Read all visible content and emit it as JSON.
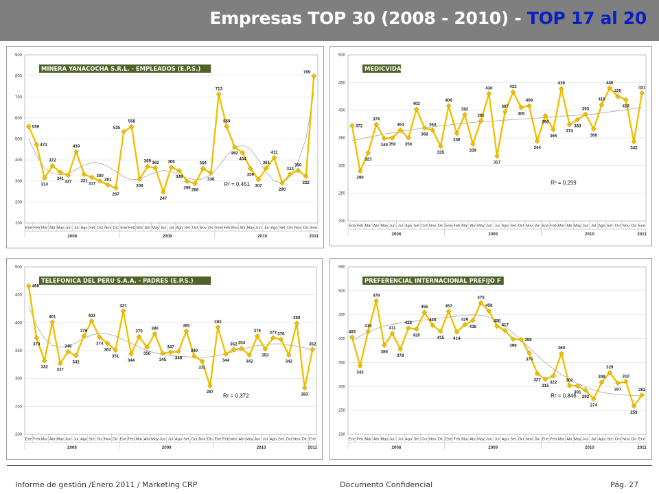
{
  "header": {
    "title_main": "Empresas TOP 30 (2008 - 2010) - ",
    "title_highlight": "TOP 17 al 20"
  },
  "footer": {
    "left": "Informe de gestión /Enero 2011 / Marketing CRP",
    "center": "Documento Confidencial",
    "right": "Pág. 27"
  },
  "colors": {
    "header_bg": "#7f7f7f",
    "title_highlight": "#0a1fc0",
    "series": "#f0c000",
    "label_bg": "#4f6228"
  },
  "months": [
    "Ene",
    "Feb",
    "Mar",
    "Abr",
    "May",
    "Jun",
    "Jul",
    "Ago",
    "Set",
    "Oct",
    "Nov",
    "Dic",
    "Ene",
    "Feb",
    "Mar",
    "Abr",
    "May",
    "Jun",
    "Jul",
    "Ago",
    "Set",
    "Oct",
    "Nov",
    "Dic",
    "Ene",
    "Feb",
    "Mar",
    "Abr",
    "May",
    "Jun",
    "Jul",
    "Ago",
    "Set",
    "Oct",
    "Nov",
    "Dic",
    "Ene"
  ],
  "years": [
    "2008",
    "2009",
    "2010",
    "2011"
  ],
  "chart_data": [
    {
      "type": "line",
      "title": "MINERA YANACOCHA S.R.L. - EMPLEADOS (E.P.S.)",
      "ylim": [
        100,
        900
      ],
      "yticks": [
        100,
        200,
        300,
        400,
        500,
        600,
        700,
        800,
        900
      ],
      "values": [
        559,
        473,
        314,
        372,
        341,
        327,
        439,
        331,
        317,
        300,
        281,
        267,
        535,
        558,
        308,
        369,
        362,
        247,
        366,
        349,
        298,
        288,
        359,
        338,
        713,
        559,
        462,
        434,
        359,
        307,
        361,
        411,
        290,
        332,
        350,
        322,
        799
      ],
      "labeled": [
        0,
        1,
        2,
        3,
        4,
        5,
        6,
        7,
        8,
        9,
        10,
        11,
        12,
        13,
        14,
        15,
        16,
        17,
        18,
        19,
        20,
        21,
        22,
        23,
        24,
        25,
        26,
        27,
        28,
        29,
        30,
        31,
        32,
        33,
        34,
        35,
        36
      ],
      "label_pos": [
        "r",
        "r",
        "b",
        "t",
        "b",
        "b",
        "t",
        "b",
        "b",
        "t",
        "t",
        "b",
        "l",
        "t",
        "b",
        "t",
        "t",
        "b",
        "t",
        "b",
        "b",
        "b",
        "t",
        "b",
        "t",
        "t",
        "b",
        "b",
        "b",
        "b",
        "t",
        "t",
        "b",
        "t",
        "t",
        "b",
        "l"
      ],
      "r2": "R² = 0,451",
      "r2_pos": [
        0.68,
        0.22
      ],
      "trend": [
        500,
        420,
        360,
        335,
        330,
        335,
        355,
        375,
        388,
        385,
        370,
        345,
        320,
        305,
        310,
        325,
        340,
        350,
        345,
        330,
        315,
        305,
        310,
        330,
        370,
        420,
        460,
        470,
        450,
        400,
        340,
        300,
        290,
        320,
        390,
        500,
        720
      ]
    },
    {
      "type": "line",
      "title": "MEDICVIDA",
      "ylim": [
        200,
        500
      ],
      "yticks": [
        200,
        250,
        300,
        350,
        400,
        450,
        500
      ],
      "values": [
        372,
        290,
        323,
        374,
        349,
        350,
        364,
        350,
        402,
        368,
        364,
        335,
        408,
        358,
        392,
        339,
        381,
        430,
        317,
        397,
        433,
        405,
        408,
        344,
        390,
        365,
        439,
        374,
        383,
        393,
        366,
        410,
        440,
        425,
        419,
        343,
        431
      ],
      "labeled": [
        0,
        1,
        2,
        3,
        4,
        5,
        6,
        7,
        8,
        9,
        10,
        11,
        12,
        13,
        14,
        15,
        16,
        17,
        18,
        19,
        20,
        21,
        22,
        23,
        24,
        25,
        26,
        27,
        28,
        29,
        30,
        31,
        32,
        33,
        34,
        35,
        36
      ],
      "label_pos": [
        "r",
        "b",
        "b",
        "t",
        "b",
        "b",
        "t",
        "b",
        "t",
        "b",
        "t",
        "b",
        "t",
        "b",
        "t",
        "b",
        "t",
        "t",
        "b",
        "t",
        "t",
        "b",
        "t",
        "b",
        "b",
        "b",
        "t",
        "b",
        "b",
        "t",
        "b",
        "t",
        "t",
        "t",
        "b",
        "b",
        "t"
      ],
      "r2": "R² = 0,299",
      "r2_pos": [
        0.68,
        0.22
      ],
      "trend": [
        345,
        348,
        351,
        354,
        357,
        359,
        362,
        364,
        366,
        368,
        370,
        372,
        373,
        375,
        376,
        378,
        379,
        380,
        381,
        382,
        383,
        384,
        385,
        386,
        387,
        388,
        389,
        390,
        391,
        392,
        393,
        395,
        397,
        399,
        401,
        403,
        405
      ]
    },
    {
      "type": "line",
      "title": "TELEFONICA DEL PERU S.A.A. - PADRES (E.P.S.)",
      "ylim": [
        200,
        500
      ],
      "yticks": [
        200,
        250,
        300,
        350,
        400,
        450,
        500
      ],
      "values": [
        466,
        373,
        332,
        401,
        327,
        348,
        341,
        376,
        403,
        374,
        363,
        351,
        421,
        344,
        375,
        356,
        380,
        345,
        347,
        348,
        385,
        340,
        331,
        287,
        392,
        344,
        352,
        354,
        342,
        376,
        353,
        373,
        370,
        342,
        399,
        283,
        352
      ],
      "labeled": [
        0,
        1,
        2,
        3,
        4,
        5,
        6,
        7,
        8,
        9,
        10,
        11,
        12,
        13,
        14,
        15,
        16,
        17,
        18,
        19,
        20,
        21,
        22,
        23,
        24,
        25,
        26,
        27,
        28,
        29,
        30,
        31,
        32,
        33,
        34,
        35,
        36
      ],
      "label_pos": [
        "r",
        "b",
        "b",
        "t",
        "b",
        "t",
        "b",
        "t",
        "t",
        "b",
        "b",
        "b",
        "t",
        "b",
        "t",
        "b",
        "t",
        "b",
        "t",
        "b",
        "t",
        "t",
        "b",
        "b",
        "t",
        "b",
        "t",
        "t",
        "b",
        "t",
        "b",
        "t",
        "t",
        "b",
        "t",
        "b",
        "t"
      ],
      "r2": "R² = 0,372",
      "r2_pos": [
        0.68,
        0.22
      ],
      "trend": [
        430,
        395,
        372,
        360,
        356,
        358,
        364,
        372,
        378,
        381,
        380,
        376,
        370,
        363,
        356,
        350,
        346,
        343,
        341,
        340,
        339,
        338,
        338,
        339,
        341,
        344,
        348,
        352,
        356,
        359,
        361,
        362,
        362,
        360,
        358,
        355,
        352
      ]
    },
    {
      "type": "line",
      "title": "PREFERENCIAL INTERNACIONAL PREFIJO F",
      "ylim": [
        200,
        550
      ],
      "yticks": [
        200,
        250,
        300,
        350,
        400,
        450,
        500,
        550
      ],
      "values": [
        403,
        343,
        415,
        479,
        386,
        411,
        378,
        422,
        420,
        455,
        428,
        415,
        457,
        414,
        429,
        438,
        475,
        458,
        426,
        417,
        399,
        398,
        370,
        327,
        315,
        322,
        369,
        302,
        301,
        292,
        274,
        309,
        329,
        307,
        310,
        259,
        282
      ],
      "labeled": [
        0,
        1,
        2,
        3,
        4,
        5,
        6,
        7,
        8,
        9,
        10,
        11,
        12,
        13,
        14,
        15,
        16,
        17,
        18,
        19,
        20,
        21,
        22,
        23,
        24,
        25,
        26,
        27,
        28,
        29,
        30,
        31,
        32,
        33,
        34,
        35,
        36
      ],
      "label_pos": [
        "t",
        "b",
        "t",
        "t",
        "b",
        "t",
        "b",
        "t",
        "b",
        "t",
        "t",
        "b",
        "t",
        "b",
        "t",
        "b",
        "t",
        "t",
        "t",
        "t",
        "b",
        "r",
        "b",
        "b",
        "b",
        "b",
        "t",
        "t",
        "b",
        "b",
        "b",
        "t",
        "t",
        "b",
        "t",
        "b",
        "t"
      ],
      "r2": "R² = 0,846",
      "r2_pos": [
        0.68,
        0.22
      ],
      "trend": [
        395,
        405,
        414,
        421,
        426,
        430,
        433,
        435,
        437,
        439,
        441,
        443,
        445,
        447,
        449,
        450,
        449,
        445,
        437,
        426,
        412,
        397,
        381,
        365,
        350,
        337,
        325,
        315,
        306,
        299,
        293,
        288,
        285,
        283,
        282,
        281,
        280
      ]
    }
  ]
}
